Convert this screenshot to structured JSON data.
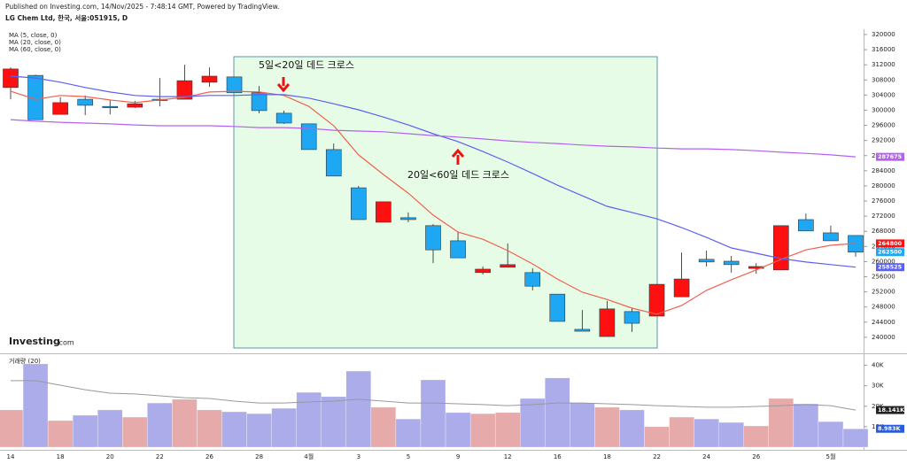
{
  "source": "Published on Investing.com, 14/Nov/2025 - 7:48:14 GMT, Powered by TradingView.",
  "logo": {
    "name": "Investing",
    "suffix": ".com"
  },
  "chart_data": [
    {
      "type": "candlestick",
      "title": "LG Chem Ltd, 한국, 서울:051915, D",
      "categories": [
        "14",
        null,
        "18",
        null,
        "20",
        null,
        "22",
        null,
        "26",
        null,
        "28",
        null,
        "4월",
        null,
        "3",
        null,
        "5",
        null,
        "9",
        null,
        "12",
        null,
        "16",
        null,
        "18",
        null,
        "22",
        null,
        "24",
        null,
        "26",
        null,
        null,
        "5월",
        null
      ],
      "open": [
        306000,
        309200,
        298900,
        302900,
        301000,
        300800,
        302900,
        302900,
        307400,
        308800,
        304600,
        299200,
        296400,
        289600,
        279500,
        270400,
        271600,
        269500,
        265500,
        257100,
        258500,
        257100,
        251400,
        242100,
        240200,
        246800,
        245600,
        250700,
        260600,
        260100,
        258200,
        257800,
        271100,
        267600,
        266900
      ],
      "high": [
        311300,
        309400,
        303400,
        303900,
        302700,
        302500,
        308500,
        312000,
        311300,
        308800,
        306400,
        299900,
        296400,
        291200,
        280000,
        275800,
        273000,
        269900,
        267800,
        258700,
        264800,
        258200,
        251400,
        247200,
        249600,
        247700,
        254000,
        262400,
        262900,
        261500,
        259600,
        269500,
        272700,
        269500,
        266900
      ],
      "low": [
        302900,
        297500,
        298900,
        298700,
        298900,
        300600,
        301000,
        302900,
        306200,
        304600,
        299200,
        296400,
        289600,
        282600,
        271100,
        270400,
        270400,
        259600,
        261000,
        256600,
        258500,
        252400,
        244200,
        241600,
        240200,
        241400,
        245600,
        250700,
        258700,
        257100,
        256800,
        257800,
        268100,
        265500,
        261300
      ],
      "close": [
        310900,
        297500,
        302000,
        301300,
        300800,
        301700,
        302700,
        307800,
        309000,
        304600,
        299900,
        296600,
        289600,
        282600,
        271100,
        275800,
        271100,
        263100,
        261000,
        258000,
        259200,
        253500,
        244200,
        241600,
        247500,
        243700,
        254000,
        255400,
        259900,
        259200,
        258700,
        269500,
        268100,
        265500,
        262500
      ],
      "up_color": "#ff1010",
      "down_color": "#1ea7f2",
      "series": [
        {
          "name": "MA (5, close, 0)",
          "color": "#f0604e",
          "values": [
            305000,
            302900,
            303900,
            303600,
            302700,
            302000,
            302700,
            303400,
            304800,
            305000,
            304800,
            303900,
            301000,
            295900,
            288200,
            283000,
            278100,
            272300,
            267800,
            265900,
            262900,
            259400,
            255400,
            251900,
            250000,
            247700,
            246100,
            248400,
            252400,
            255200,
            257800,
            260600,
            263100,
            264300,
            264800
          ]
        },
        {
          "name": "MA (20, close, 0)",
          "color": "#5a60f2",
          "values": [
            309000,
            308500,
            307400,
            306000,
            304800,
            303900,
            303600,
            303600,
            303900,
            303900,
            304100,
            304100,
            303200,
            301700,
            300100,
            298200,
            296100,
            293800,
            291700,
            289100,
            286300,
            283300,
            280200,
            277400,
            274600,
            273000,
            271300,
            269000,
            266400,
            263600,
            262200,
            260800,
            259900,
            259200,
            258525
          ]
        },
        {
          "name": "MA (60, close, 0)",
          "color": "#b462ee",
          "values": [
            297500,
            297100,
            296800,
            296600,
            296400,
            296100,
            295900,
            295900,
            295900,
            295700,
            295400,
            295400,
            295200,
            294700,
            294500,
            294300,
            293800,
            293300,
            292900,
            292400,
            291900,
            291500,
            291200,
            290800,
            290500,
            290300,
            290000,
            289800,
            289800,
            289600,
            289300,
            288900,
            288600,
            288200,
            287675
          ]
        }
      ],
      "annotations": [
        "5일<20일 데드 크로스",
        "20일<60일 데드 크로스"
      ],
      "ylim": [
        236000,
        321400
      ],
      "yticks": [
        240000,
        244000,
        248000,
        252000,
        256000,
        260000,
        264000,
        268000,
        272000,
        276000,
        280000,
        284000,
        288000,
        292000,
        296000,
        300000,
        304000,
        308000,
        312000,
        316000,
        320000
      ]
    },
    {
      "type": "bar",
      "title": "거래량 (20)",
      "values": [
        18200,
        40700,
        13000,
        15600,
        18200,
        14700,
        21600,
        23400,
        18200,
        17300,
        16400,
        19000,
        26800,
        24700,
        37200,
        19500,
        13800,
        32900,
        16900,
        16400,
        16900,
        23800,
        33800,
        21600,
        19500,
        18200,
        10000,
        14700,
        13800,
        12100,
        10400,
        23800,
        21200,
        12500,
        8983
      ],
      "value_labels": [
        null,
        null,
        null,
        null,
        null,
        null,
        null,
        null,
        null,
        null,
        null,
        null,
        null,
        null,
        null,
        null,
        null,
        null,
        null,
        null,
        null,
        null,
        null,
        null,
        null,
        null,
        null,
        null,
        null,
        null,
        null,
        null,
        null,
        null,
        "8.983K"
      ],
      "up_color": "#e6aaaa",
      "down_color": "#acacea",
      "series": [
        {
          "color": "#999999",
          "values": [
            32500,
            32500,
            30300,
            28100,
            26400,
            26000,
            25100,
            24200,
            23800,
            22500,
            21600,
            21600,
            22100,
            22500,
            23400,
            22500,
            21600,
            21600,
            21200,
            20800,
            20300,
            20800,
            21600,
            21600,
            21200,
            20800,
            20300,
            19900,
            19500,
            19500,
            19900,
            20300,
            20800,
            20300,
            18141
          ],
          "value_labels": [
            null,
            null,
            null,
            null,
            null,
            null,
            null,
            null,
            null,
            null,
            null,
            null,
            null,
            null,
            null,
            null,
            null,
            null,
            null,
            null,
            null,
            null,
            null,
            null,
            null,
            null,
            null,
            null,
            null,
            null,
            null,
            null,
            null,
            null,
            "18.141K"
          ]
        }
      ],
      "ylim": [
        0,
        45000
      ],
      "yticks": [
        {
          "value": 10000,
          "label": "10K"
        },
        {
          "value": 20000,
          "label": "20K"
        },
        {
          "value": 30000,
          "label": "30K"
        },
        {
          "value": 40000,
          "label": "40K"
        }
      ]
    }
  ]
}
